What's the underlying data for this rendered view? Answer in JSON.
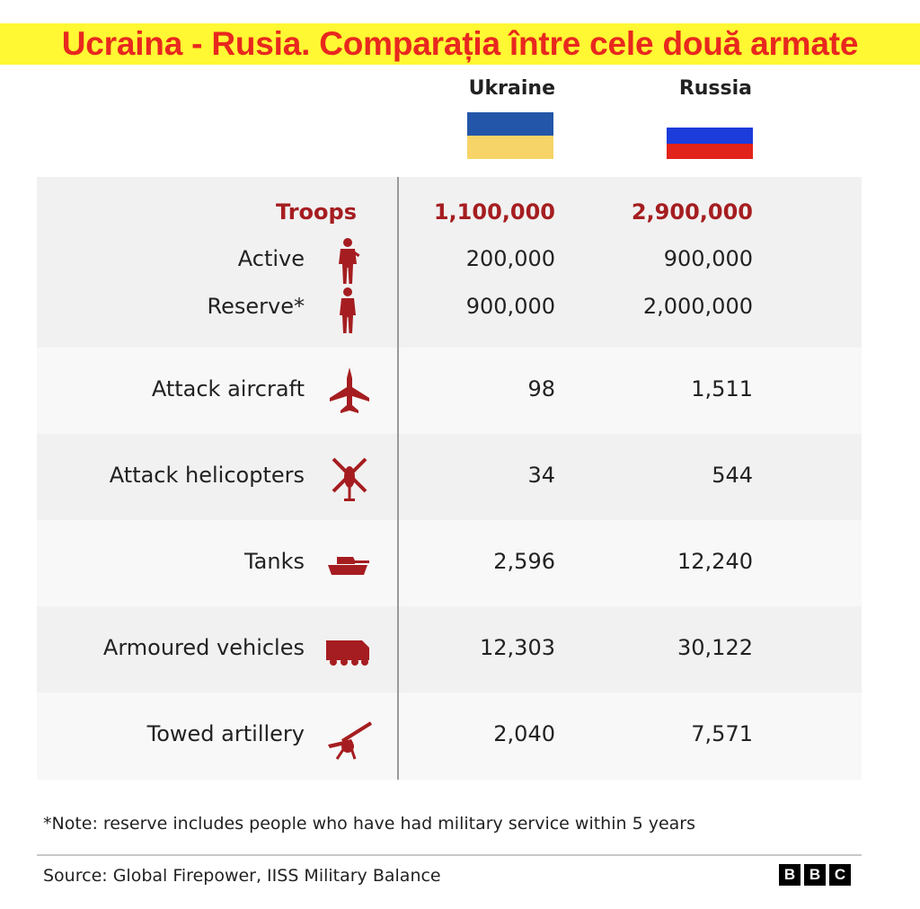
{
  "title": "Ucraina - Rusia. Comparația între cele două armate",
  "colors": {
    "banner_bg": "#fff833",
    "title": "#e8281e",
    "accent": "#a51d20"
  },
  "columns": {
    "ukraine": {
      "label": "Ukraine",
      "flag_colors": [
        "#2356a8",
        "#f6d467"
      ]
    },
    "russia": {
      "label": "Russia",
      "flag_colors": [
        "#ffffff",
        "#1c3cdb",
        "#e2231a"
      ]
    }
  },
  "chart_data": {
    "type": "table",
    "title": "Ucraina - Rusia. Comparația între cele două armate",
    "columns": [
      "Ukraine",
      "Russia"
    ],
    "rows": [
      {
        "label": "Troops",
        "ukraine": "1,100,000",
        "russia": "2,900,000"
      },
      {
        "label": "Active",
        "icon": "soldier-icon",
        "ukraine": "200,000",
        "russia": "900,000"
      },
      {
        "label": "Reserve*",
        "icon": "person-icon",
        "ukraine": "900,000",
        "russia": "2,000,000"
      },
      {
        "label": "Attack aircraft",
        "icon": "jet-icon",
        "ukraine": "98",
        "russia": "1,511"
      },
      {
        "label": "Attack helicopters",
        "icon": "helicopter-icon",
        "ukraine": "34",
        "russia": "544"
      },
      {
        "label": "Tanks",
        "icon": "tank-icon",
        "ukraine": "2,596",
        "russia": "12,240"
      },
      {
        "label": "Armoured vehicles",
        "icon": "armoured-vehicle-icon",
        "ukraine": "12,303",
        "russia": "30,122"
      },
      {
        "label": "Towed artillery",
        "icon": "artillery-icon",
        "ukraine": "2,040",
        "russia": "7,571"
      }
    ]
  },
  "note": "*Note: reserve includes people who have had military service within 5 years",
  "source": "Source: Global Firepower, IISS Military Balance",
  "logo": [
    "B",
    "B",
    "C"
  ]
}
